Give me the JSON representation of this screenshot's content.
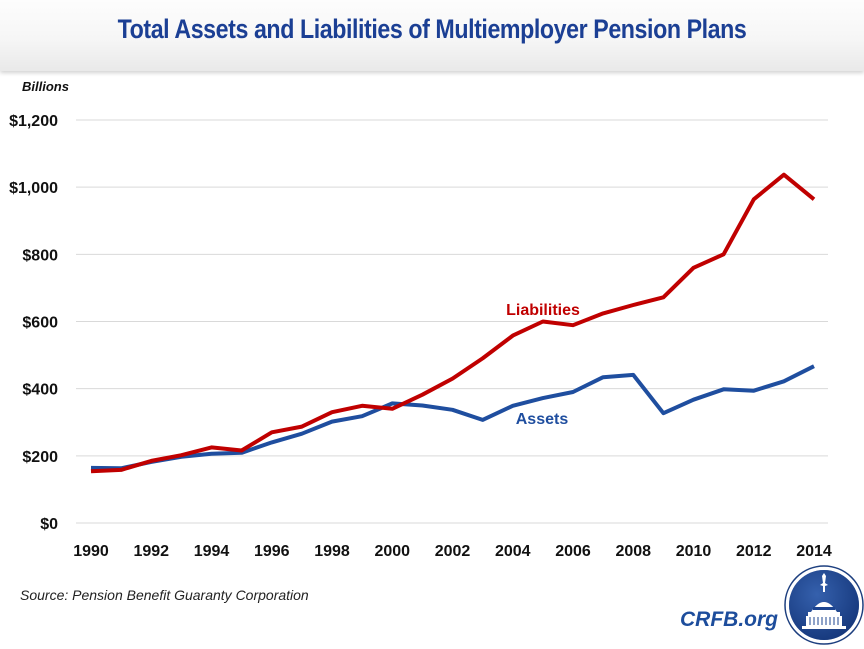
{
  "header": {
    "title": "Total Assets and Liabilities of Multiemployer Pension Plans"
  },
  "unit_label": "Billions",
  "source": "Source: Pension Benefit Guaranty Corporation",
  "brand": {
    "text": "CRFB.org",
    "logo_icon": "capitol-dome-seal-icon"
  },
  "colors": {
    "title": "#1b3f94",
    "liabilities": "#c00000",
    "assets": "#1f4e9f",
    "grid": "#d9d9d9",
    "brand": "#1d4d9c"
  },
  "chart_data": {
    "type": "line",
    "title": "Total Assets and Liabilities of Multiemployer Pension Plans",
    "ylabel": "Billions",
    "xlabel": "",
    "x": [
      1990,
      1991,
      1992,
      1993,
      1994,
      1995,
      1996,
      1997,
      1998,
      1999,
      2000,
      2001,
      2002,
      2003,
      2004,
      2005,
      2006,
      2007,
      2008,
      2009,
      2010,
      2011,
      2012,
      2013,
      2014
    ],
    "ylim": [
      0,
      1200
    ],
    "yticks": [
      0,
      200,
      400,
      600,
      800,
      1000,
      1200
    ],
    "ytick_labels": [
      "$0",
      "$200",
      "$400",
      "$600",
      "$800",
      "$1,000",
      "$1,200"
    ],
    "xtick_labels": [
      "1990",
      "1992",
      "1994",
      "1996",
      "1998",
      "2000",
      "2002",
      "2004",
      "2006",
      "2008",
      "2010",
      "2012",
      "2014"
    ],
    "grid": true,
    "series": [
      {
        "name": "Liabilities",
        "color": "#c00000",
        "values": [
          154,
          158,
          185,
          202,
          225,
          216,
          270,
          287,
          330,
          349,
          340,
          382,
          430,
          490,
          558,
          600,
          589,
          624,
          649,
          672,
          760,
          800,
          964,
          1037,
          964
        ]
      },
      {
        "name": "Assets",
        "color": "#1f4e9f",
        "values": [
          164,
          163,
          182,
          197,
          206,
          209,
          240,
          266,
          302,
          318,
          356,
          350,
          337,
          307,
          349,
          372,
          390,
          434,
          441,
          327,
          367,
          398,
          394,
          422,
          467
        ]
      }
    ],
    "annotations": [
      "Liabilities",
      "Assets"
    ]
  }
}
